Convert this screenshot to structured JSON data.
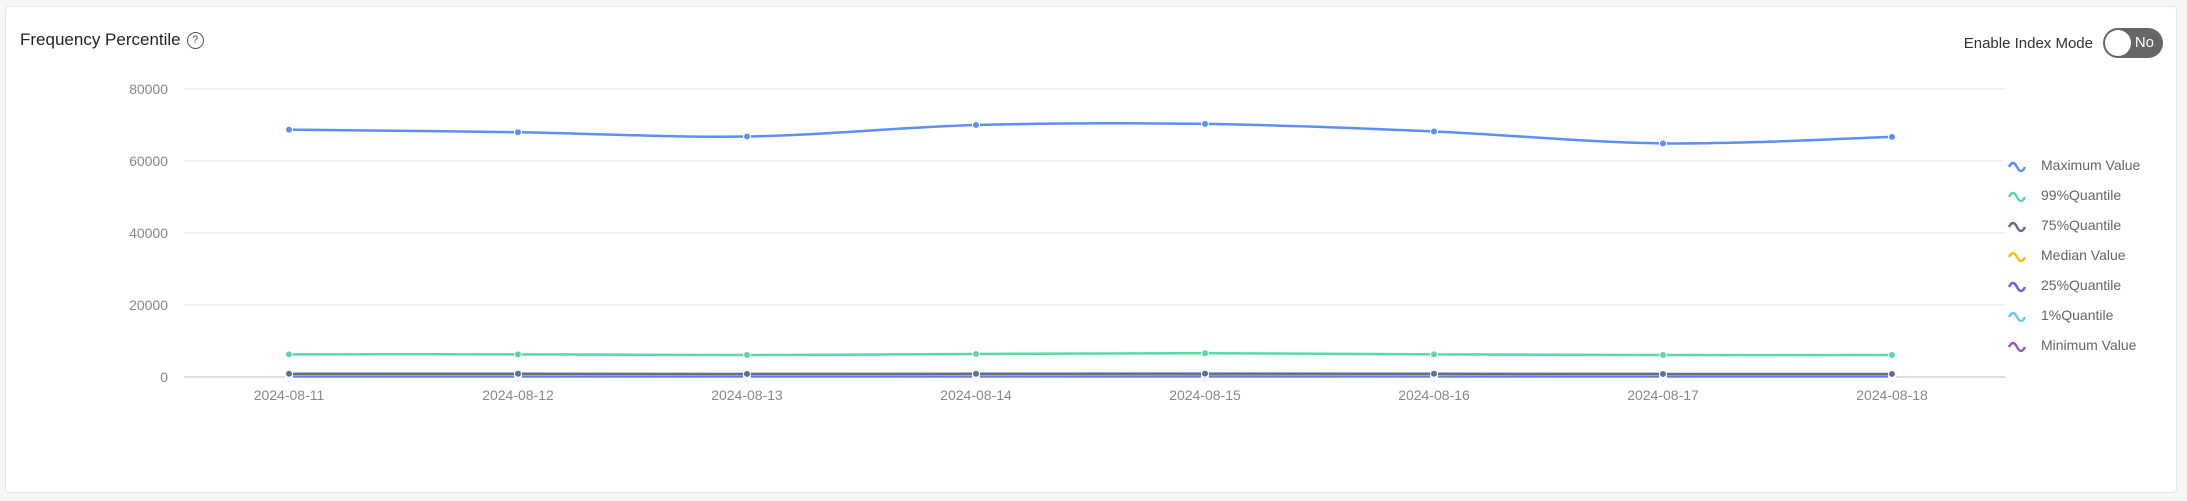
{
  "header": {
    "title": "Frequency Percentile",
    "help_icon": "question-circle-icon",
    "toggle_label": "Enable Index Mode",
    "toggle_value": "No",
    "toggle_on": false
  },
  "chart_data": {
    "type": "line",
    "smooth": true,
    "categories": [
      "2024-08-11",
      "2024-08-12",
      "2024-08-13",
      "2024-08-14",
      "2024-08-15",
      "2024-08-16",
      "2024-08-17",
      "2024-08-18"
    ],
    "yticks": [
      "0",
      "20000",
      "40000",
      "60000",
      "80000"
    ],
    "ylim": [
      0,
      80000
    ],
    "grid": true,
    "legend_position": "right",
    "series": [
      {
        "name": "Maximum Value",
        "color": "#5b8ff9",
        "values": [
          68700,
          68000,
          66800,
          70000,
          70300,
          68200,
          64900,
          66700
        ]
      },
      {
        "name": "99%Quantile",
        "color": "#5ad8a6",
        "values": [
          6300,
          6300,
          6100,
          6400,
          6600,
          6300,
          6100,
          6100
        ]
      },
      {
        "name": "75%Quantile",
        "color": "#5d7092",
        "values": [
          900,
          900,
          850,
          900,
          950,
          900,
          850,
          850
        ]
      },
      {
        "name": "Median Value",
        "color": "#f6bd16",
        "values": [
          700,
          700,
          650,
          700,
          750,
          700,
          650,
          650
        ]
      },
      {
        "name": "25%Quantile",
        "color": "#6f5ef9",
        "values": [
          400,
          400,
          380,
          400,
          420,
          400,
          380,
          380
        ]
      },
      {
        "name": "1%Quantile",
        "color": "#6dc8ec",
        "values": [
          150,
          150,
          140,
          150,
          160,
          150,
          140,
          140
        ]
      },
      {
        "name": "Minimum Value",
        "color": "#945fb9",
        "values": [
          100,
          100,
          100,
          100,
          100,
          100,
          100,
          100
        ]
      }
    ]
  }
}
